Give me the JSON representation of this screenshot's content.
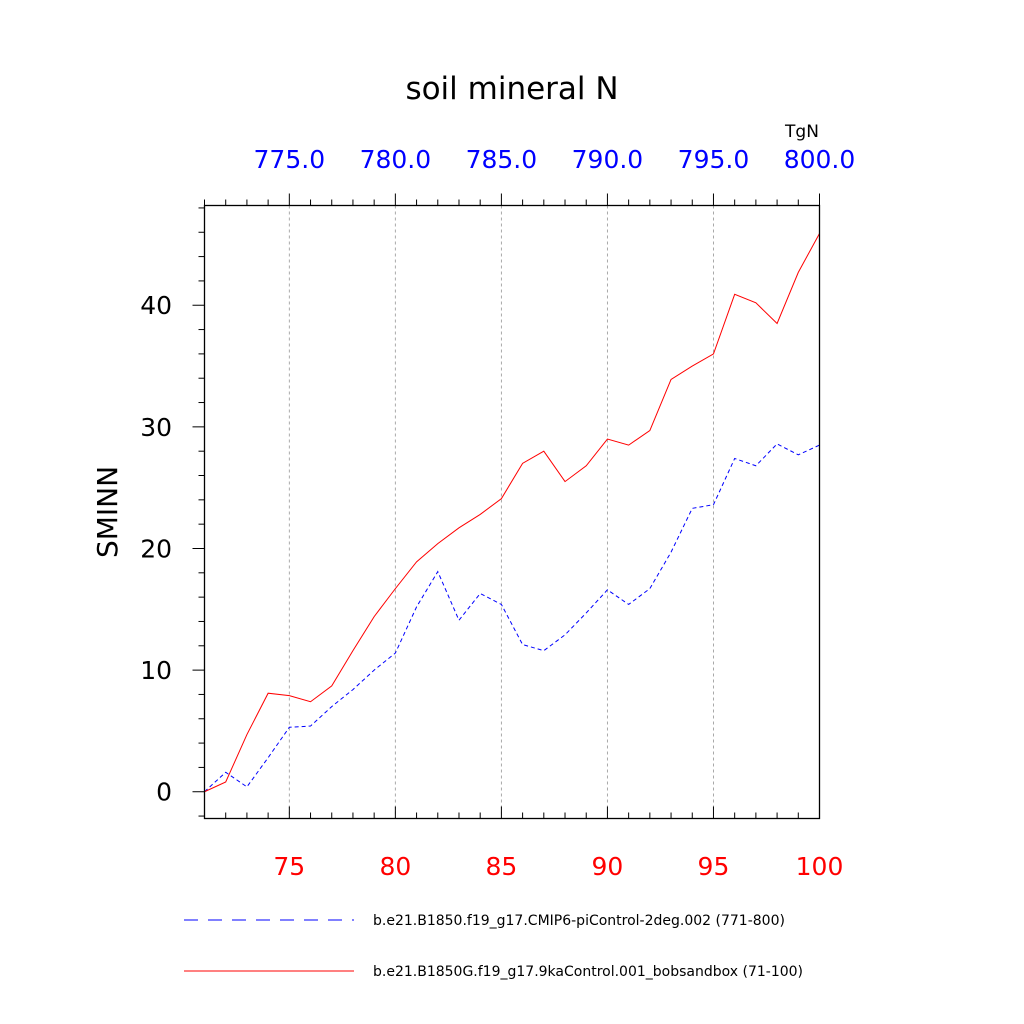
{
  "chart_data": {
    "type": "line",
    "title": "soil mineral N",
    "ylabel": "SMINN",
    "units": "TgN",
    "ylim": [
      -2.2,
      48.2
    ],
    "grid": "vertical dashed at major x ticks",
    "bottom_axis": {
      "range": [
        71,
        100
      ],
      "ticks": [
        75,
        80,
        85,
        90,
        95,
        100
      ],
      "tick_labels": [
        "75",
        "80",
        "85",
        "90",
        "95",
        "100"
      ],
      "color": "#ff0000"
    },
    "top_axis": {
      "range": [
        771,
        800
      ],
      "ticks": [
        775,
        780,
        785,
        790,
        795,
        800
      ],
      "tick_labels": [
        "775.0",
        "780.0",
        "785.0",
        "790.0",
        "795.0",
        "800.0"
      ],
      "color": "#0000ff"
    },
    "y_ticks": [
      0,
      10,
      20,
      30,
      40
    ],
    "y_tick_labels": [
      "0",
      "10",
      "20",
      "30",
      "40"
    ],
    "legend_position": "bottom",
    "series": [
      {
        "name": "b.e21.B1850.f19_g17.CMIP6-piControl-2deg.002 (771-800)",
        "axis": "top",
        "color": "#0000ff",
        "style": "dashed",
        "x": [
          771,
          772,
          773,
          774,
          775,
          776,
          777,
          778,
          779,
          780,
          781,
          782,
          783,
          784,
          785,
          786,
          787,
          788,
          789,
          790,
          791,
          792,
          793,
          794,
          795,
          796,
          797,
          798,
          799,
          800
        ],
        "y": [
          0.0,
          1.6,
          0.4,
          2.8,
          5.3,
          5.4,
          7.0,
          8.4,
          10.0,
          11.4,
          15.2,
          18.1,
          14.1,
          16.3,
          15.4,
          12.1,
          11.6,
          12.9,
          14.7,
          16.6,
          15.4,
          16.7,
          19.7,
          23.3,
          23.6,
          27.4,
          26.8,
          28.6,
          27.7,
          28.5
        ]
      },
      {
        "name": "b.e21.B1850G.f19_g17.9kaControl.001_bobsandbox (71-100)",
        "axis": "bottom",
        "color": "#ff0000",
        "style": "solid",
        "x": [
          71,
          72,
          73,
          74,
          75,
          76,
          77,
          78,
          79,
          80,
          81,
          82,
          83,
          84,
          85,
          86,
          87,
          88,
          89,
          90,
          91,
          92,
          93,
          94,
          95,
          96,
          97,
          98,
          99,
          100
        ],
        "y": [
          0.0,
          0.8,
          4.7,
          8.1,
          7.9,
          7.4,
          8.7,
          11.6,
          14.4,
          16.7,
          18.9,
          20.4,
          21.7,
          22.8,
          24.1,
          27.0,
          28.0,
          25.5,
          26.8,
          29.0,
          28.5,
          29.7,
          33.9,
          35.0,
          36.0,
          40.9,
          40.2,
          38.5,
          42.7,
          45.9
        ]
      }
    ]
  }
}
